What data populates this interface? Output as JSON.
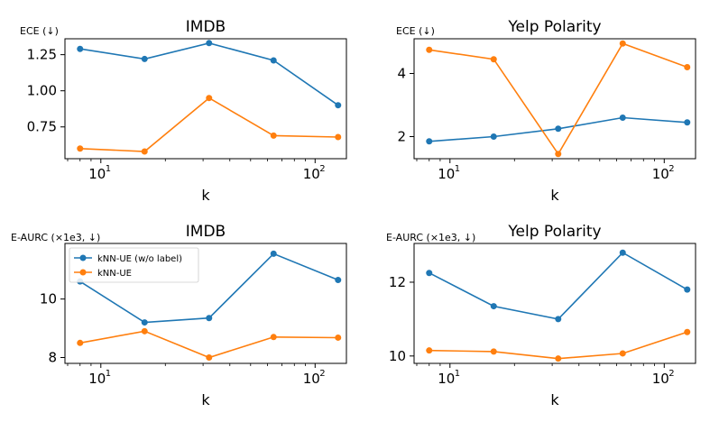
{
  "colors": {
    "series1": "#1f77b4",
    "series2": "#ff7f0e"
  },
  "legend": [
    "kNN-UE (w/o label)",
    "kNN-UE"
  ],
  "chart_data": [
    {
      "type": "line",
      "title": "IMDB",
      "ylabel": "ECE (↓)",
      "xlabel": "k",
      "xscale": "log",
      "xlim": [
        6.8,
        140
      ],
      "ylim": [
        0.53,
        1.36
      ],
      "yticks": [
        0.75,
        1.0,
        1.25
      ],
      "ytick_labels": [
        "0.75",
        "1.00",
        "1.25"
      ],
      "xtick_labels": [
        "10",
        "10"
      ],
      "xtick_exponents": [
        "1",
        "2"
      ],
      "x": [
        8,
        16,
        32,
        64,
        128
      ],
      "series": [
        {
          "name": "kNN-UE (w/o label)",
          "values": [
            1.29,
            1.22,
            1.33,
            1.21,
            0.9
          ]
        },
        {
          "name": "kNN-UE",
          "values": [
            0.6,
            0.58,
            0.95,
            0.69,
            0.68
          ]
        }
      ]
    },
    {
      "type": "line",
      "title": "Yelp Polarity",
      "ylabel": "ECE (↓)",
      "xlabel": "k",
      "xscale": "log",
      "xlim": [
        6.8,
        140
      ],
      "ylim": [
        1.3,
        5.1
      ],
      "yticks": [
        2,
        4
      ],
      "ytick_labels": [
        "2",
        "4"
      ],
      "xtick_labels": [
        "10",
        "10"
      ],
      "xtick_exponents": [
        "1",
        "2"
      ],
      "x": [
        8,
        16,
        32,
        64,
        128
      ],
      "series": [
        {
          "name": "kNN-UE (w/o label)",
          "values": [
            1.85,
            2.0,
            2.25,
            2.6,
            2.45
          ]
        },
        {
          "name": "kNN-UE",
          "values": [
            4.75,
            4.45,
            1.45,
            4.95,
            4.2
          ]
        }
      ]
    },
    {
      "type": "line",
      "title": "IMDB",
      "ylabel": "E-AURC (×1e3, ↓)",
      "xlabel": "k",
      "xscale": "log",
      "xlim": [
        6.8,
        140
      ],
      "ylim": [
        7.8,
        11.9
      ],
      "yticks": [
        8,
        10
      ],
      "ytick_labels": [
        "8",
        "10"
      ],
      "xtick_labels": [
        "10",
        "10"
      ],
      "xtick_exponents": [
        "1",
        "2"
      ],
      "x": [
        8,
        16,
        32,
        64,
        128
      ],
      "series": [
        {
          "name": "kNN-UE (w/o label)",
          "values": [
            10.6,
            9.2,
            9.35,
            11.55,
            10.65
          ]
        },
        {
          "name": "kNN-UE",
          "values": [
            8.5,
            8.9,
            8.0,
            8.7,
            8.68
          ]
        }
      ]
    },
    {
      "type": "line",
      "title": "Yelp Polarity",
      "ylabel": "E-AURC (×1e3, ↓)",
      "xlabel": "k",
      "xscale": "log",
      "xlim": [
        6.8,
        140
      ],
      "ylim": [
        9.8,
        13.05
      ],
      "yticks": [
        10,
        12
      ],
      "ytick_labels": [
        "10",
        "12"
      ],
      "xtick_labels": [
        "10",
        "10"
      ],
      "xtick_exponents": [
        "1",
        "2"
      ],
      "x": [
        8,
        16,
        32,
        64,
        128
      ],
      "series": [
        {
          "name": "kNN-UE (w/o label)",
          "values": [
            12.25,
            11.35,
            11.0,
            12.8,
            11.8
          ]
        },
        {
          "name": "kNN-UE",
          "values": [
            10.15,
            10.12,
            9.93,
            10.07,
            10.65
          ]
        }
      ]
    }
  ]
}
